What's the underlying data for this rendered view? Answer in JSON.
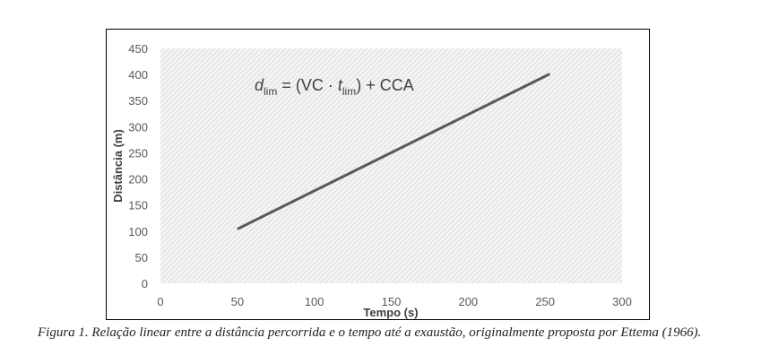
{
  "chart_data": {
    "type": "line",
    "xlabel": "Tempo (s)",
    "ylabel": "Distância (m)",
    "xlim": [
      0,
      300
    ],
    "ylim": [
      0,
      450
    ],
    "xticks": [
      0,
      50,
      100,
      150,
      200,
      250,
      300
    ],
    "yticks": [
      0,
      50,
      100,
      150,
      200,
      250,
      300,
      350,
      400,
      450
    ],
    "grid": false,
    "series": [
      {
        "x": [
          50,
          253
        ],
        "y": [
          104,
          401
        ],
        "color": "#595959"
      }
    ],
    "annotation": {
      "d": "d",
      "d_sub": "lim",
      "mid": " = (VC · ",
      "t": "t",
      "t_sub": "lim",
      "end": ") + CCA"
    },
    "plot_background": "hatched-light-gray"
  },
  "caption": "Figura 1. Relação linear entre a distância percorrida e o tempo até a exaustão, originalmente proposta por Ettema (1966)."
}
